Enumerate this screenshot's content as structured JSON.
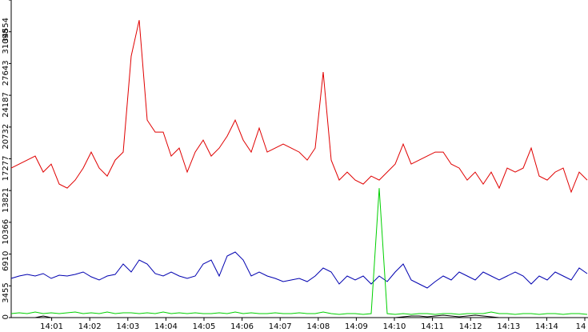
{
  "chart_data": {
    "type": "line",
    "ylim": [
      0,
      34554
    ],
    "yticks": [
      0,
      3455,
      6910,
      10366,
      13821,
      17277,
      20732,
      24187,
      27643,
      31098,
      34554
    ],
    "xticks": [
      "14:01",
      "14:02",
      "14:03",
      "14:04",
      "14:05",
      "14:06",
      "14:07",
      "14:08",
      "14:09",
      "14:10",
      "14:11",
      "14:12",
      "14:13",
      "14:14",
      "14"
    ],
    "series": [
      {
        "color": "#e00000",
        "values": [
          16269,
          16704,
          17139,
          17574,
          15834,
          16704,
          14529,
          14094,
          14964,
          16269,
          18009,
          16269,
          15399,
          17139,
          18009,
          28449,
          32364,
          21489,
          20184,
          20184,
          17574,
          18444,
          15834,
          18009,
          19314,
          17574,
          18444,
          19749,
          21489,
          19314,
          18009,
          20619,
          18009,
          18444,
          18879,
          18444,
          18009,
          17139,
          18444,
          26709,
          17139,
          14964,
          15834,
          14964,
          14529,
          15399,
          14964,
          15834,
          16704,
          18879,
          16704,
          17139,
          17574,
          18009,
          18009,
          16704,
          16269,
          14964,
          15834,
          14529,
          15834,
          14094,
          16269,
          15834,
          16269,
          18444,
          15399,
          14964,
          15834,
          16269,
          13659,
          15834,
          14964
        ]
      },
      {
        "color": "#0000b0",
        "values": [
          4263,
          4524,
          4698,
          4524,
          4785,
          4263,
          4611,
          4524,
          4698,
          4959,
          4437,
          4089,
          4524,
          4698,
          5829,
          4959,
          6264,
          5829,
          4785,
          4524,
          4959,
          4524,
          4263,
          4524,
          5829,
          6264,
          4524,
          6699,
          7134,
          6264,
          4524,
          4959,
          4524,
          4263,
          3915,
          4089,
          4263,
          3915,
          4524,
          5394,
          4959,
          3654,
          4524,
          4089,
          4524,
          3654,
          4524,
          3915,
          4959,
          5829,
          4089,
          3654,
          3219,
          3915,
          4524,
          4089,
          4959,
          4524,
          4089,
          4959,
          4524,
          4089,
          4524,
          4959,
          4524,
          3654,
          4524,
          4089,
          4959,
          4524,
          4089,
          5394,
          4785
        ]
      },
      {
        "color": "#00d000",
        "values": [
          435,
          522,
          435,
          609,
          435,
          522,
          435,
          522,
          609,
          435,
          522,
          435,
          609,
          435,
          522,
          522,
          435,
          522,
          435,
          609,
          435,
          522,
          435,
          522,
          435,
          435,
          522,
          435,
          609,
          435,
          522,
          435,
          435,
          522,
          435,
          435,
          522,
          435,
          435,
          609,
          435,
          348,
          435,
          435,
          348,
          435,
          14094,
          435,
          348,
          435,
          348,
          435,
          435,
          348,
          435,
          435,
          348,
          435,
          435,
          435,
          609,
          435,
          435,
          348,
          435,
          435,
          348,
          435,
          435,
          348,
          435,
          435,
          348
        ]
      },
      {
        "color": "#000000",
        "values": [
          0,
          0,
          0,
          0,
          174,
          0,
          0,
          0,
          0,
          0,
          0,
          0,
          0,
          0,
          0,
          0,
          0,
          0,
          0,
          0,
          0,
          0,
          0,
          0,
          0,
          0,
          0,
          0,
          0,
          0,
          0,
          0,
          0,
          0,
          0,
          0,
          0,
          0,
          0,
          0,
          0,
          0,
          0,
          0,
          0,
          0,
          0,
          0,
          0,
          87,
          174,
          174,
          87,
          174,
          261,
          174,
          87,
          174,
          261,
          174,
          87,
          0,
          0,
          0,
          0,
          0,
          0,
          0,
          0,
          0,
          0,
          0,
          0
        ]
      }
    ]
  }
}
